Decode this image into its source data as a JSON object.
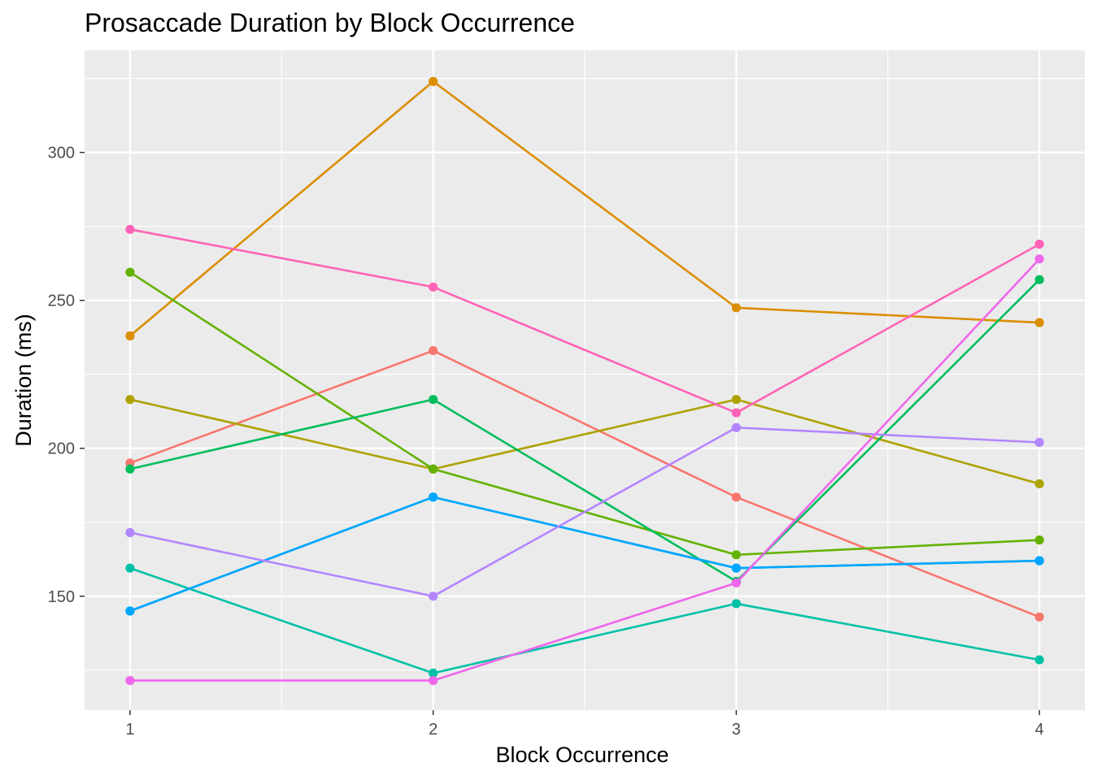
{
  "chart_data": {
    "type": "line",
    "title": "Prosaccade Duration by Block Occurrence",
    "xlabel": "Block Occurrence",
    "ylabel": "Duration (ms)",
    "x": [
      1,
      2,
      3,
      4
    ],
    "x_tick_labels": [
      "1",
      "2",
      "3",
      "4"
    ],
    "xlim": [
      0.85,
      4.15
    ],
    "ylim": [
      111.5,
      334.5
    ],
    "y_ticks": [
      150,
      200,
      250,
      300
    ],
    "y_tick_labels": [
      "150",
      "200",
      "250",
      "300"
    ],
    "grid": true,
    "legend": "none",
    "panel_background": "#EBEBEB",
    "series": [
      {
        "color": "#F8766D",
        "values": [
          195,
          233,
          183.5,
          143
        ]
      },
      {
        "color": "#DB8E00",
        "values": [
          238,
          324,
          247.5,
          242.5
        ]
      },
      {
        "color": "#AEA200",
        "values": [
          216.5,
          193,
          216.5,
          188
        ]
      },
      {
        "color": "#64B200",
        "values": [
          259.5,
          193,
          164,
          169
        ]
      },
      {
        "color": "#00BD5C",
        "values": [
          193,
          216.5,
          155,
          257
        ]
      },
      {
        "color": "#00C1A7",
        "values": [
          159.5,
          124,
          147.5,
          128.5
        ]
      },
      {
        "color": "#00BADE",
        "values": [
          145,
          183.5,
          159.5,
          162
        ]
      },
      {
        "color": "#00A6FF",
        "values": [
          145,
          183.5,
          159.5,
          162
        ]
      },
      {
        "color": "#B385FF",
        "values": [
          171.5,
          150,
          207,
          202
        ]
      },
      {
        "color": "#EF67EB",
        "values": [
          121.5,
          121.5,
          154.5,
          264
        ]
      },
      {
        "color": "#FF63B6",
        "values": [
          274,
          254.5,
          212,
          269
        ]
      }
    ]
  }
}
